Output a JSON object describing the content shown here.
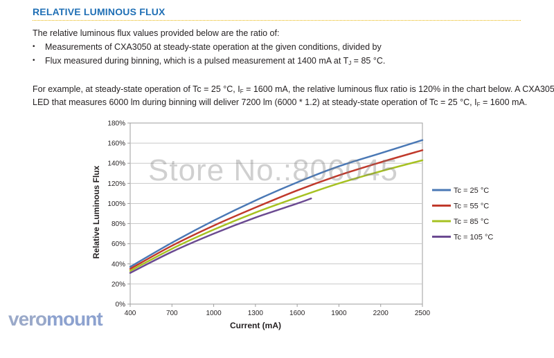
{
  "header": {
    "title": "RELATIVE LUMINOUS FLUX"
  },
  "intro": {
    "line1": "The relative luminous flux values provided below are the ratio of:",
    "bullet1": "Measurements of CXA3050 at steady-state operation at the given conditions, divided by",
    "bullet2_pre": "Flux measured during binning, which is a pulsed measurement at 1400 mA at T",
    "bullet2_sub": "J",
    "bullet2_post": " = 85 °C.",
    "bullet_glyph": "•"
  },
  "example": {
    "l1_a": "For example, at steady-state operation of Tc = 25 °C, I",
    "l1_sub": "F",
    "l1_b": " = 1600 mA, the relative luminous flux ratio is 120% in the chart below. A CXA3050",
    "l2_a": "LED that measures 6000 lm during binning will deliver 7200 lm (6000 * 1.2) at steady-state operation of Tc = 25 °C, I",
    "l2_sub": "F",
    "l2_b": " = 1600 mA."
  },
  "watermark": "Store No.:806045",
  "logo": {
    "part1": "vero",
    "part2": "mount"
  },
  "chart_data": {
    "type": "line",
    "xlabel": "Current (mA)",
    "ylabel": "Relative Luminous Flux",
    "xlim": [
      400,
      2500
    ],
    "ylim": [
      0,
      180
    ],
    "x_ticks": [
      400,
      700,
      1000,
      1300,
      1600,
      1900,
      2200,
      2500
    ],
    "y_ticks": [
      "0%",
      "20%",
      "40%",
      "60%",
      "80%",
      "100%",
      "120%",
      "140%",
      "160%",
      "180%"
    ],
    "grid": "horizontal",
    "legend_position": "right",
    "series": [
      {
        "name": "Tc = 25 °C",
        "color": "#4a78b5",
        "x": [
          400,
          700,
          1000,
          1300,
          1600,
          1900,
          2200,
          2500
        ],
        "y": [
          37,
          61,
          83,
          103,
          121,
          137,
          150,
          163
        ]
      },
      {
        "name": "Tc = 55 °C",
        "color": "#c0392b",
        "x": [
          400,
          700,
          1000,
          1300,
          1600,
          1900,
          2200,
          2500
        ],
        "y": [
          35,
          58,
          78,
          96,
          113,
          128,
          141,
          153
        ]
      },
      {
        "name": "Tc = 85 °C",
        "color": "#a6c121",
        "x": [
          400,
          700,
          1000,
          1300,
          1600,
          1900,
          2200,
          2500
        ],
        "y": [
          33,
          55,
          74,
          91,
          106,
          120,
          132,
          143
        ]
      },
      {
        "name": "Tc = 105 °C",
        "color": "#6b4a91",
        "x": [
          400,
          700,
          1000,
          1300,
          1600,
          1700
        ],
        "y": [
          31,
          52,
          70,
          86,
          100,
          105
        ]
      }
    ]
  }
}
